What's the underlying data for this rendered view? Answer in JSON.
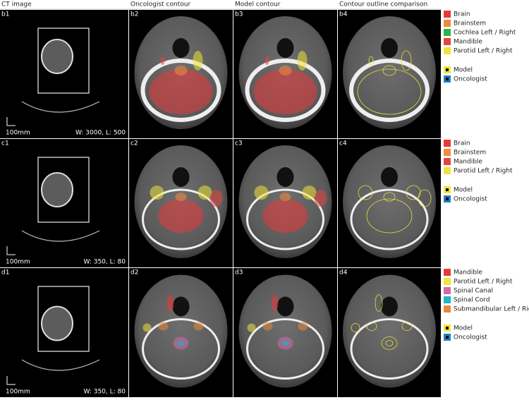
{
  "header": {
    "columns": [
      "CT image",
      "Oncologist contour",
      "Model contour",
      "Contour outline comparison"
    ]
  },
  "rows": [
    {
      "panels": [
        "b1",
        "b2",
        "b3",
        "b4"
      ],
      "scale": "100mm",
      "window": "W: 3000, L: 500",
      "legend": [
        {
          "label": "Brain",
          "color": "#e8393a"
        },
        {
          "label": "Brainstem",
          "color": "#f08a3c"
        },
        {
          "label": "Cochlea Left / Right",
          "color": "#2db34a"
        },
        {
          "label": "Mandible",
          "color": "#e3453f"
        },
        {
          "label": "Parotid Left / Right",
          "color": "#f0e33a"
        }
      ],
      "comparison": [
        {
          "label": "Model",
          "color": "#f2e43a"
        },
        {
          "label": "Oncologist",
          "color": "#1f7fc4"
        }
      ]
    },
    {
      "panels": [
        "c1",
        "c2",
        "c3",
        "c4"
      ],
      "scale": "100mm",
      "window": "W: 350, L: 80",
      "legend": [
        {
          "label": "Brain",
          "color": "#e8393a"
        },
        {
          "label": "Brainstem",
          "color": "#f08a3c"
        },
        {
          "label": "Mandible",
          "color": "#e3453f"
        },
        {
          "label": "Parotid Left / Right",
          "color": "#f0e33a"
        }
      ],
      "comparison": [
        {
          "label": "Model",
          "color": "#f2e43a"
        },
        {
          "label": "Oncologist",
          "color": "#1f7fc4"
        }
      ]
    },
    {
      "panels": [
        "d1",
        "d2",
        "d3",
        "d4"
      ],
      "scale": "100mm",
      "window": "W: 350, L: 80",
      "legend": [
        {
          "label": "Mandible",
          "color": "#e8393a"
        },
        {
          "label": "Parotid Left / Right",
          "color": "#f0e33a"
        },
        {
          "label": "Spinal Canal",
          "color": "#d26aa8"
        },
        {
          "label": "Spinal Cord",
          "color": "#21b5c8"
        },
        {
          "label": "Submandibular Left / Right",
          "color": "#e88a3c"
        }
      ],
      "comparison": [
        {
          "label": "Model",
          "color": "#f2e43a"
        },
        {
          "label": "Oncologist",
          "color": "#1f7fc4"
        }
      ]
    }
  ]
}
